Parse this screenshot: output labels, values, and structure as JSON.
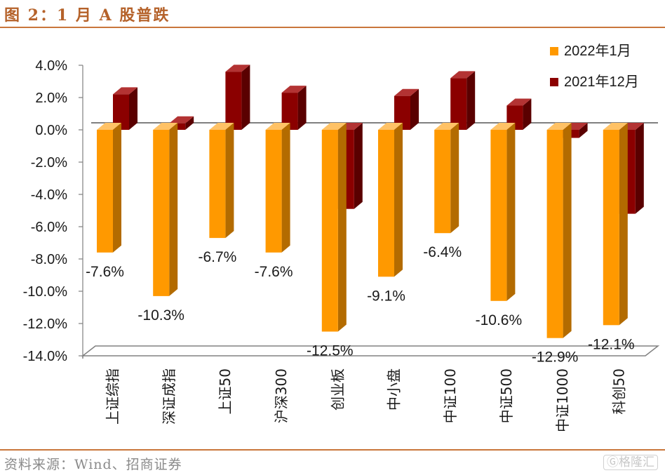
{
  "title": "图 2：1 月 A 股普跌",
  "source": "资料来源：Wind、招商证券",
  "watermark": "格隆汇",
  "colors": {
    "series1_front": "#FF9900",
    "series1_side": "#B36B00",
    "series1_top": "#FFC266",
    "series2_front": "#8B0000",
    "series2_side": "#5A0000",
    "series2_top": "#B33333",
    "rule": "#C9763B"
  },
  "chart_data": {
    "type": "bar",
    "categories": [
      "上证综指",
      "深证成指",
      "上证50",
      "沪深300",
      "创业板",
      "中小盘",
      "中证100",
      "中证500",
      "中证1000",
      "科创50"
    ],
    "series": [
      {
        "name": "2022年1月",
        "values": [
          -7.6,
          -10.3,
          -6.7,
          -7.6,
          -12.5,
          -9.1,
          -6.4,
          -10.6,
          -12.9,
          -12.1
        ]
      },
      {
        "name": "2021年12月",
        "values": [
          2.2,
          0.4,
          3.6,
          2.3,
          -4.9,
          2.1,
          3.2,
          1.5,
          -0.5,
          -5.2
        ]
      }
    ],
    "data_labels": [
      "-7.6%",
      "-10.3%",
      "-6.7%",
      "-7.6%",
      "-12.5%",
      "-9.1%",
      "-6.4%",
      "-10.6%",
      "-12.9%",
      "-12.1%"
    ],
    "yticks": [
      "4.0%",
      "2.0%",
      "0.0%",
      "-2.0%",
      "-4.0%",
      "-6.0%",
      "-8.0%",
      "-10.0%",
      "-12.0%",
      "-14.0%"
    ],
    "ylim": [
      -14,
      4
    ],
    "legend_position": "top-right",
    "xlabel": "",
    "ylabel": ""
  }
}
